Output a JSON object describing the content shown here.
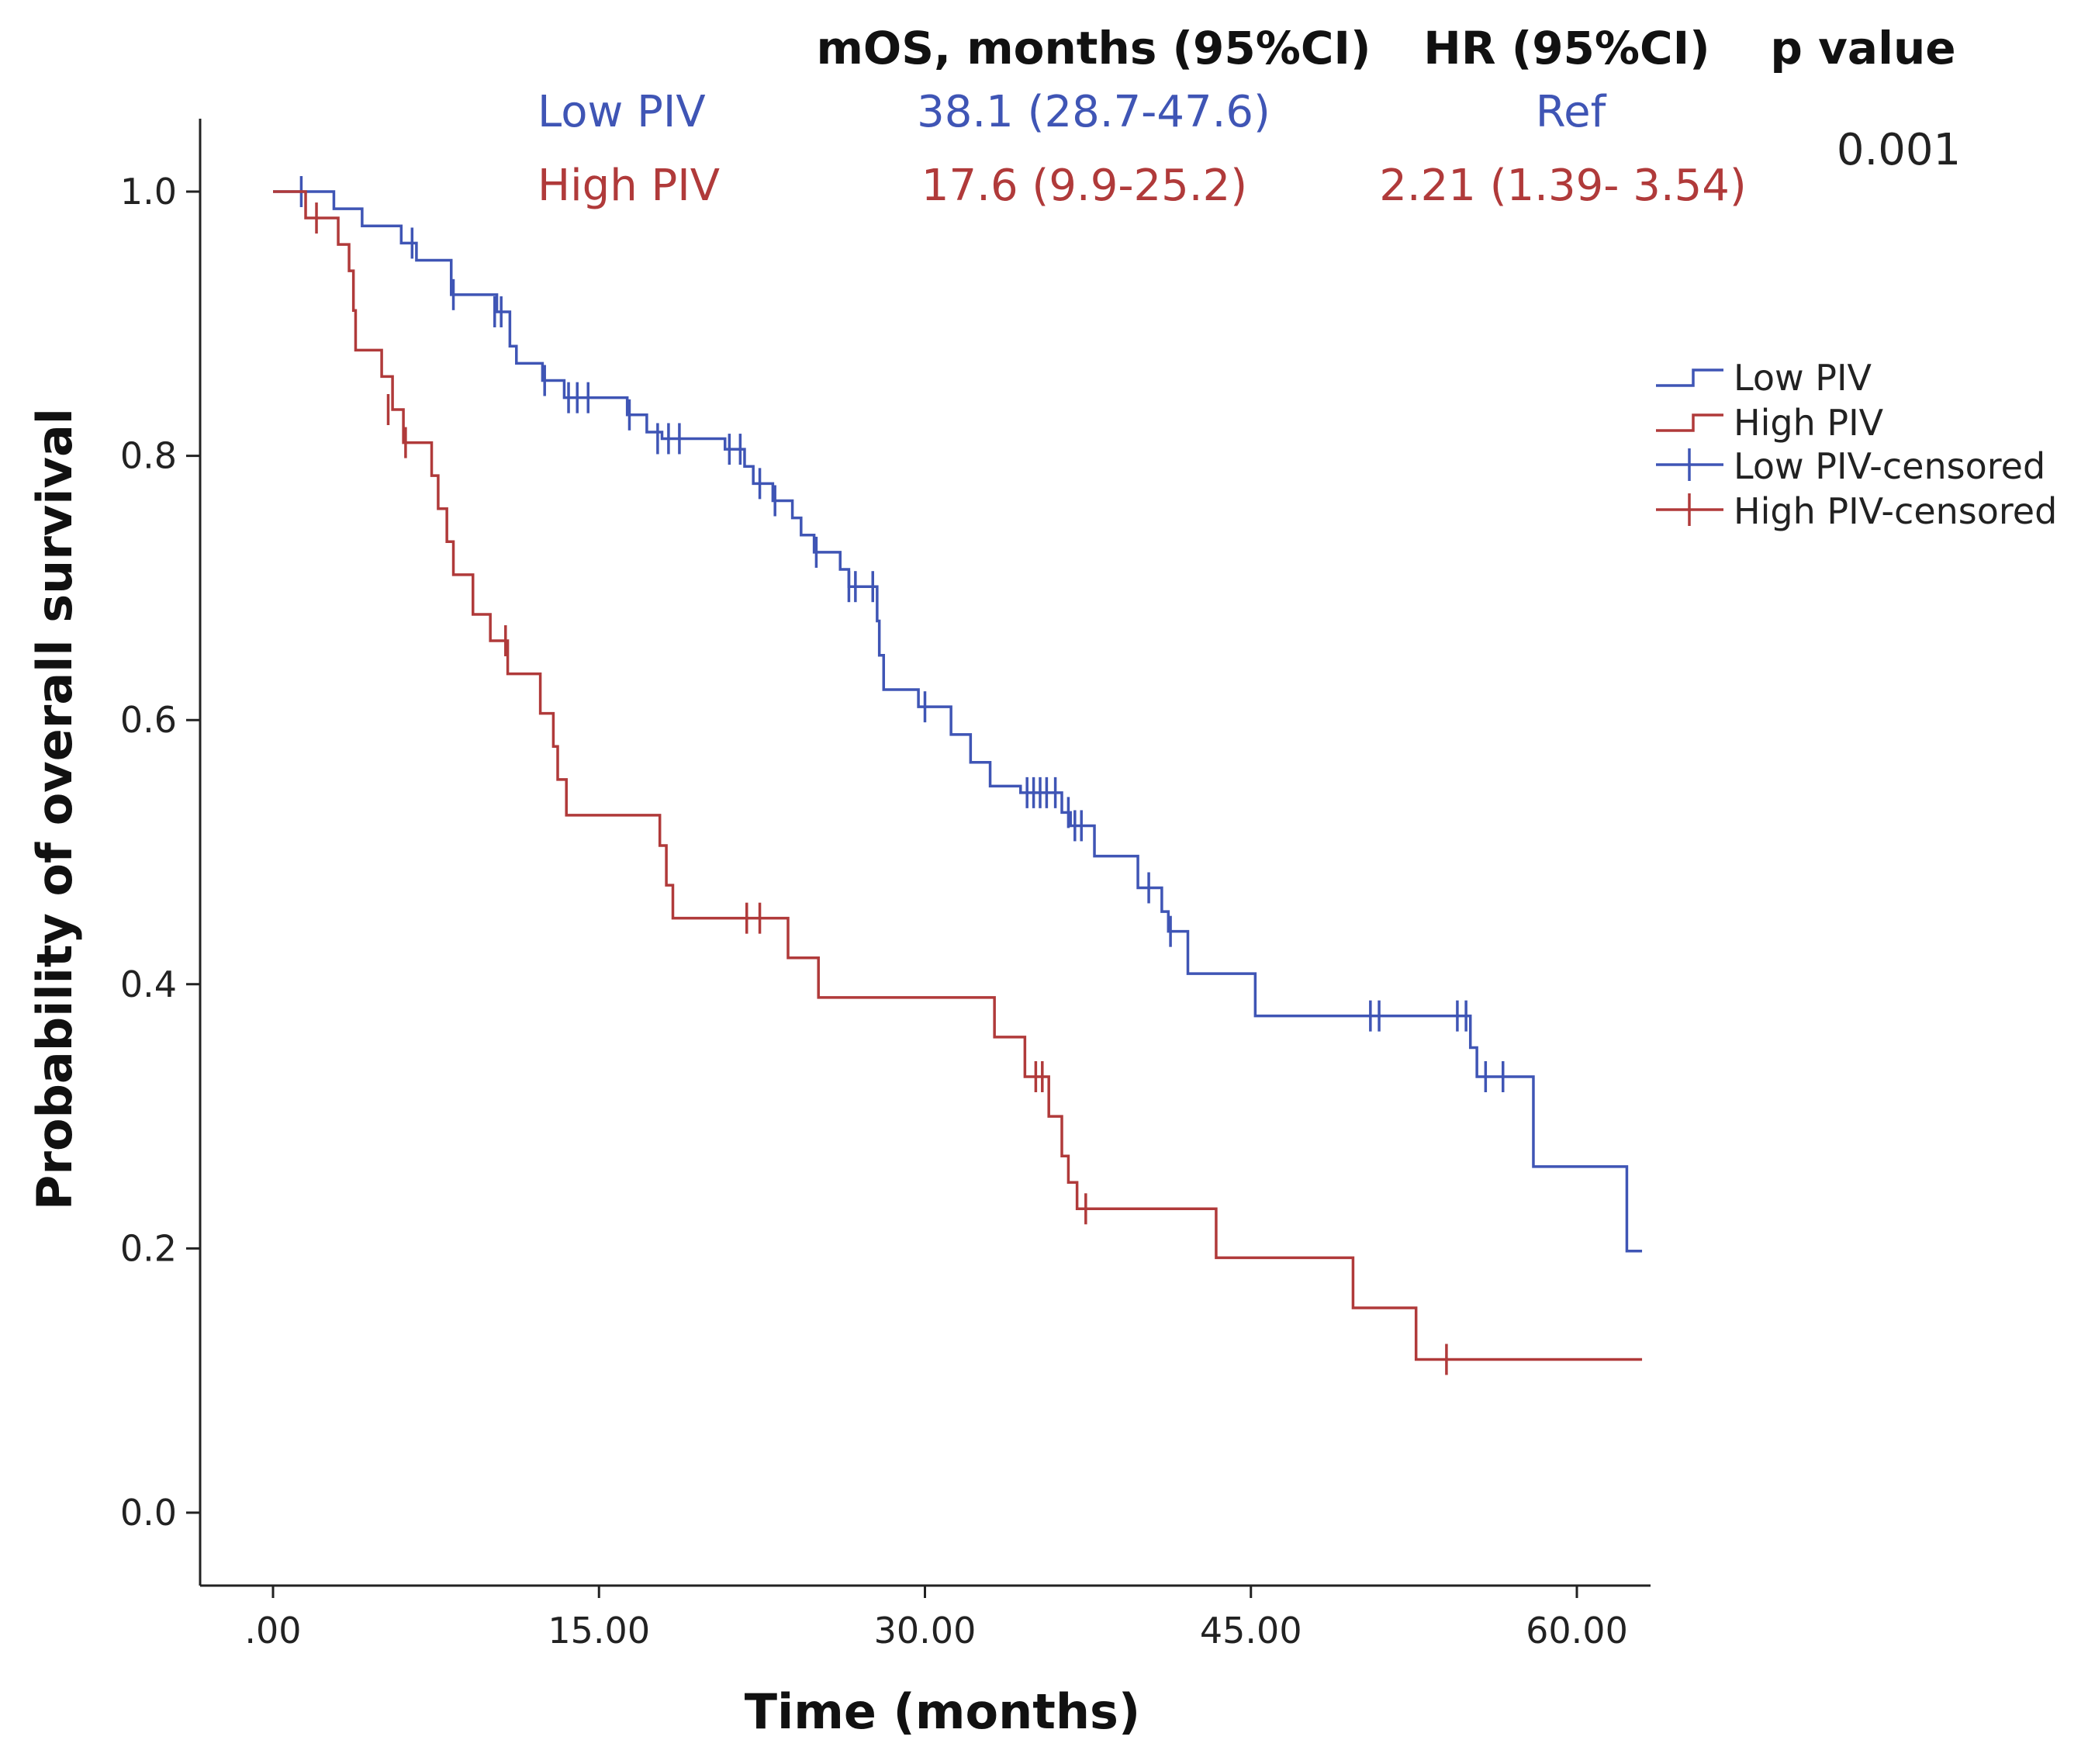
{
  "chart_data": {
    "type": "line",
    "subtype": "kaplan-meier",
    "xlabel": "Time (months)",
    "ylabel": "Probability of overall survival",
    "xlim": [
      -5.5,
      63
    ],
    "ylim": [
      -0.11,
      1.06
    ],
    "x_ticks": [
      0,
      15,
      30,
      45,
      60
    ],
    "x_tick_labels": [
      ".00",
      "15.00",
      "30.00",
      "45.00",
      "60.00"
    ],
    "y_ticks": [
      0,
      0.2,
      0.4,
      0.6,
      0.8,
      1.0
    ],
    "y_tick_labels": [
      "0.0",
      "0.2",
      "0.4",
      "0.6",
      "0.8",
      "1.0"
    ],
    "grid": false,
    "legend_position": "right",
    "legend": [
      "Low PIV",
      "High PIV",
      "Low PIV-censored",
      "High PIV-censored"
    ],
    "series": [
      {
        "name": "Low PIV",
        "color": "#3f55b5",
        "steps": [
          [
            0,
            1.0
          ],
          [
            2.8,
            0.987
          ],
          [
            4.1,
            0.974
          ],
          [
            5.9,
            0.961
          ],
          [
            6.6,
            0.948
          ],
          [
            8.2,
            0.922
          ],
          [
            10.3,
            0.909
          ],
          [
            10.9,
            0.883
          ],
          [
            11.2,
            0.87
          ],
          [
            12.4,
            0.857
          ],
          [
            13.4,
            0.844
          ],
          [
            16.3,
            0.831
          ],
          [
            17.2,
            0.818
          ],
          [
            17.9,
            0.813
          ],
          [
            20.8,
            0.805
          ],
          [
            21.7,
            0.792
          ],
          [
            22.1,
            0.779
          ],
          [
            23.0,
            0.766
          ],
          [
            23.9,
            0.753
          ],
          [
            24.3,
            0.74
          ],
          [
            24.9,
            0.727
          ],
          [
            26.1,
            0.714
          ],
          [
            26.5,
            0.701
          ],
          [
            27.8,
            0.675
          ],
          [
            27.9,
            0.649
          ],
          [
            28.1,
            0.623
          ],
          [
            29.7,
            0.61
          ],
          [
            31.2,
            0.589
          ],
          [
            32.1,
            0.568
          ],
          [
            33.0,
            0.55
          ],
          [
            34.4,
            0.545
          ],
          [
            36.3,
            0.53
          ],
          [
            36.7,
            0.52
          ],
          [
            37.8,
            0.497
          ],
          [
            39.8,
            0.473
          ],
          [
            40.9,
            0.455
          ],
          [
            41.2,
            0.44
          ],
          [
            42.1,
            0.408
          ],
          [
            45.2,
            0.376
          ],
          [
            55.1,
            0.352
          ],
          [
            55.4,
            0.33
          ],
          [
            58.0,
            0.262
          ],
          [
            62.3,
            0.198
          ],
          [
            63.0,
            0.198
          ]
        ],
        "censored": [
          [
            1.3,
            1.0
          ],
          [
            6.4,
            0.961
          ],
          [
            8.3,
            0.922
          ],
          [
            10.2,
            0.909
          ],
          [
            10.5,
            0.909
          ],
          [
            12.5,
            0.857
          ],
          [
            13.6,
            0.844
          ],
          [
            14.0,
            0.844
          ],
          [
            14.5,
            0.844
          ],
          [
            16.4,
            0.831
          ],
          [
            17.7,
            0.813
          ],
          [
            18.2,
            0.813
          ],
          [
            18.7,
            0.813
          ],
          [
            21.0,
            0.805
          ],
          [
            21.5,
            0.805
          ],
          [
            22.4,
            0.779
          ],
          [
            23.1,
            0.766
          ],
          [
            25.0,
            0.727
          ],
          [
            26.5,
            0.701
          ],
          [
            26.8,
            0.701
          ],
          [
            27.6,
            0.701
          ],
          [
            30.0,
            0.61
          ],
          [
            34.7,
            0.545
          ],
          [
            35.0,
            0.545
          ],
          [
            35.3,
            0.545
          ],
          [
            35.6,
            0.545
          ],
          [
            36.0,
            0.545
          ],
          [
            36.6,
            0.53
          ],
          [
            36.9,
            0.52
          ],
          [
            37.2,
            0.52
          ],
          [
            40.3,
            0.473
          ],
          [
            41.3,
            0.44
          ],
          [
            50.5,
            0.376
          ],
          [
            50.9,
            0.376
          ],
          [
            54.5,
            0.376
          ],
          [
            54.9,
            0.376
          ],
          [
            55.8,
            0.33
          ],
          [
            56.6,
            0.33
          ]
        ]
      },
      {
        "name": "High PIV",
        "color": "#b03a3a",
        "steps": [
          [
            0,
            1.0
          ],
          [
            1.5,
            0.98
          ],
          [
            3.0,
            0.96
          ],
          [
            3.5,
            0.94
          ],
          [
            3.7,
            0.91
          ],
          [
            3.8,
            0.88
          ],
          [
            5.0,
            0.86
          ],
          [
            5.5,
            0.835
          ],
          [
            6.0,
            0.81
          ],
          [
            7.3,
            0.785
          ],
          [
            7.6,
            0.76
          ],
          [
            8.0,
            0.735
          ],
          [
            8.3,
            0.71
          ],
          [
            9.2,
            0.68
          ],
          [
            10.0,
            0.66
          ],
          [
            10.8,
            0.635
          ],
          [
            12.3,
            0.605
          ],
          [
            12.9,
            0.58
          ],
          [
            13.1,
            0.555
          ],
          [
            13.5,
            0.528
          ],
          [
            17.8,
            0.505
          ],
          [
            18.1,
            0.475
          ],
          [
            18.4,
            0.45
          ],
          [
            23.7,
            0.42
          ],
          [
            25.1,
            0.39
          ],
          [
            33.2,
            0.36
          ],
          [
            34.6,
            0.33
          ],
          [
            35.7,
            0.3
          ],
          [
            36.3,
            0.27
          ],
          [
            36.6,
            0.25
          ],
          [
            37.0,
            0.23
          ],
          [
            43.4,
            0.193
          ],
          [
            49.7,
            0.155
          ],
          [
            52.6,
            0.116
          ],
          [
            63.0,
            0.116
          ]
        ],
        "censored": [
          [
            2.0,
            0.98
          ],
          [
            5.3,
            0.835
          ],
          [
            6.1,
            0.81
          ],
          [
            10.7,
            0.66
          ],
          [
            21.8,
            0.45
          ],
          [
            22.4,
            0.45
          ],
          [
            35.1,
            0.33
          ],
          [
            35.4,
            0.33
          ],
          [
            37.4,
            0.23
          ],
          [
            54.0,
            0.116
          ]
        ]
      }
    ]
  },
  "summary_table": {
    "headers": [
      "mOS, months (95%CI)",
      "HR (95%CI)",
      "p value"
    ],
    "rows": [
      {
        "group": "Low PIV",
        "mos": "38.1 (28.7-47.6)",
        "hr": "Ref"
      },
      {
        "group": "High PIV",
        "mos": "17.6 (9.9-25.2)",
        "hr": "2.21 (1.39- 3.54)"
      }
    ],
    "p_value": "0.001"
  }
}
